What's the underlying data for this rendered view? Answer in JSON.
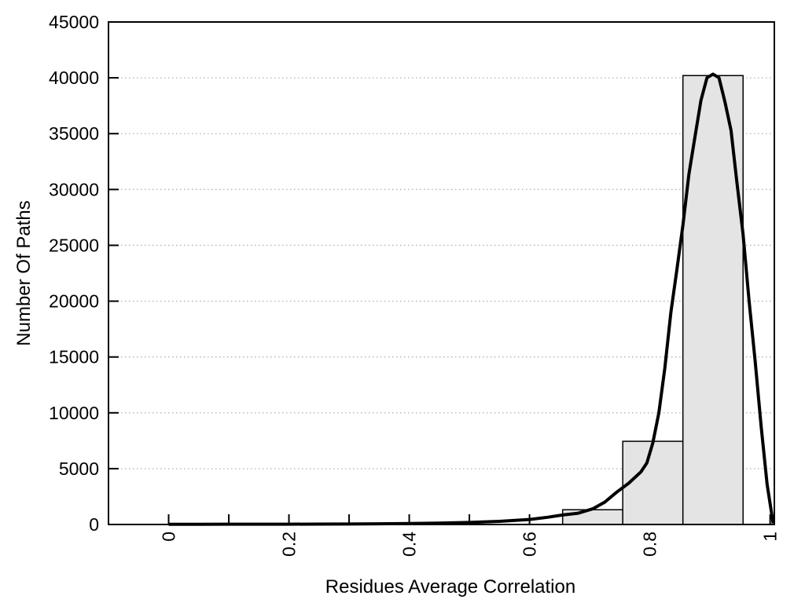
{
  "chart_data": {
    "type": "bar",
    "subtype": "histogram-with-density-curve",
    "title": "",
    "xlabel": "Residues Average Correlation",
    "ylabel": "Number Of Paths",
    "xlim": [
      -0.1,
      1.007
    ],
    "ylim": [
      0,
      45000
    ],
    "grid": {
      "horizontal": "dotted",
      "vertical": "none"
    },
    "legend": "none",
    "x_ticks": [
      {
        "v": 0.0,
        "label": "0"
      },
      {
        "v": 0.1,
        "label": ""
      },
      {
        "v": 0.2,
        "label": "0.2"
      },
      {
        "v": 0.3,
        "label": ""
      },
      {
        "v": 0.4,
        "label": "0.4"
      },
      {
        "v": 0.5,
        "label": ""
      },
      {
        "v": 0.6,
        "label": "0.6"
      },
      {
        "v": 0.7,
        "label": ""
      },
      {
        "v": 0.8,
        "label": "0.8"
      },
      {
        "v": 0.9,
        "label": ""
      },
      {
        "v": 1.0,
        "label": "1"
      }
    ],
    "y_ticks": [
      {
        "v": 0,
        "label": "0"
      },
      {
        "v": 5000,
        "label": "5000"
      },
      {
        "v": 10000,
        "label": "10000"
      },
      {
        "v": 15000,
        "label": "15000"
      },
      {
        "v": 20000,
        "label": "20000"
      },
      {
        "v": 25000,
        "label": "25000"
      },
      {
        "v": 30000,
        "label": "30000"
      },
      {
        "v": 35000,
        "label": "35000"
      },
      {
        "v": 40000,
        "label": "40000"
      },
      {
        "v": 45000,
        "label": "45000"
      }
    ],
    "histogram": {
      "bin_width": 0.1,
      "bins": [
        {
          "start": 0.655,
          "end": 0.755,
          "count": 1320
        },
        {
          "start": 0.755,
          "end": 0.855,
          "count": 7450
        },
        {
          "start": 0.855,
          "end": 0.955,
          "count": 40200
        }
      ]
    },
    "curve": {
      "name": "density-fit",
      "peak": {
        "x": 0.905,
        "y": 40330
      },
      "points": [
        [
          0.0,
          20
        ],
        [
          0.05,
          20
        ],
        [
          0.1,
          25
        ],
        [
          0.15,
          25
        ],
        [
          0.2,
          30
        ],
        [
          0.25,
          35
        ],
        [
          0.3,
          45
        ],
        [
          0.35,
          60
        ],
        [
          0.4,
          85
        ],
        [
          0.45,
          120
        ],
        [
          0.5,
          180
        ],
        [
          0.55,
          280
        ],
        [
          0.6,
          450
        ],
        [
          0.63,
          650
        ],
        [
          0.655,
          850
        ],
        [
          0.68,
          1000
        ],
        [
          0.705,
          1400
        ],
        [
          0.725,
          2000
        ],
        [
          0.745,
          2900
        ],
        [
          0.765,
          3700
        ],
        [
          0.785,
          4700
        ],
        [
          0.795,
          5500
        ],
        [
          0.805,
          7300
        ],
        [
          0.815,
          10000
        ],
        [
          0.825,
          14000
        ],
        [
          0.835,
          19000
        ],
        [
          0.845,
          22800
        ],
        [
          0.855,
          26800
        ],
        [
          0.865,
          31400
        ],
        [
          0.875,
          34700
        ],
        [
          0.885,
          38000
        ],
        [
          0.895,
          40000
        ],
        [
          0.905,
          40330
        ],
        [
          0.915,
          40000
        ],
        [
          0.925,
          37800
        ],
        [
          0.935,
          35300
        ],
        [
          0.945,
          30500
        ],
        [
          0.955,
          26000
        ],
        [
          0.965,
          20000
        ],
        [
          0.975,
          14700
        ],
        [
          0.985,
          8800
        ],
        [
          0.995,
          3600
        ],
        [
          1.005,
          100
        ]
      ]
    },
    "colors": {
      "background": "#ffffff",
      "bar_fill": "#e4e4e4",
      "bar_border": "#000000",
      "curve": "#000000",
      "grid": "#b0b0b0",
      "axis": "#000000",
      "text": "#000000"
    }
  }
}
